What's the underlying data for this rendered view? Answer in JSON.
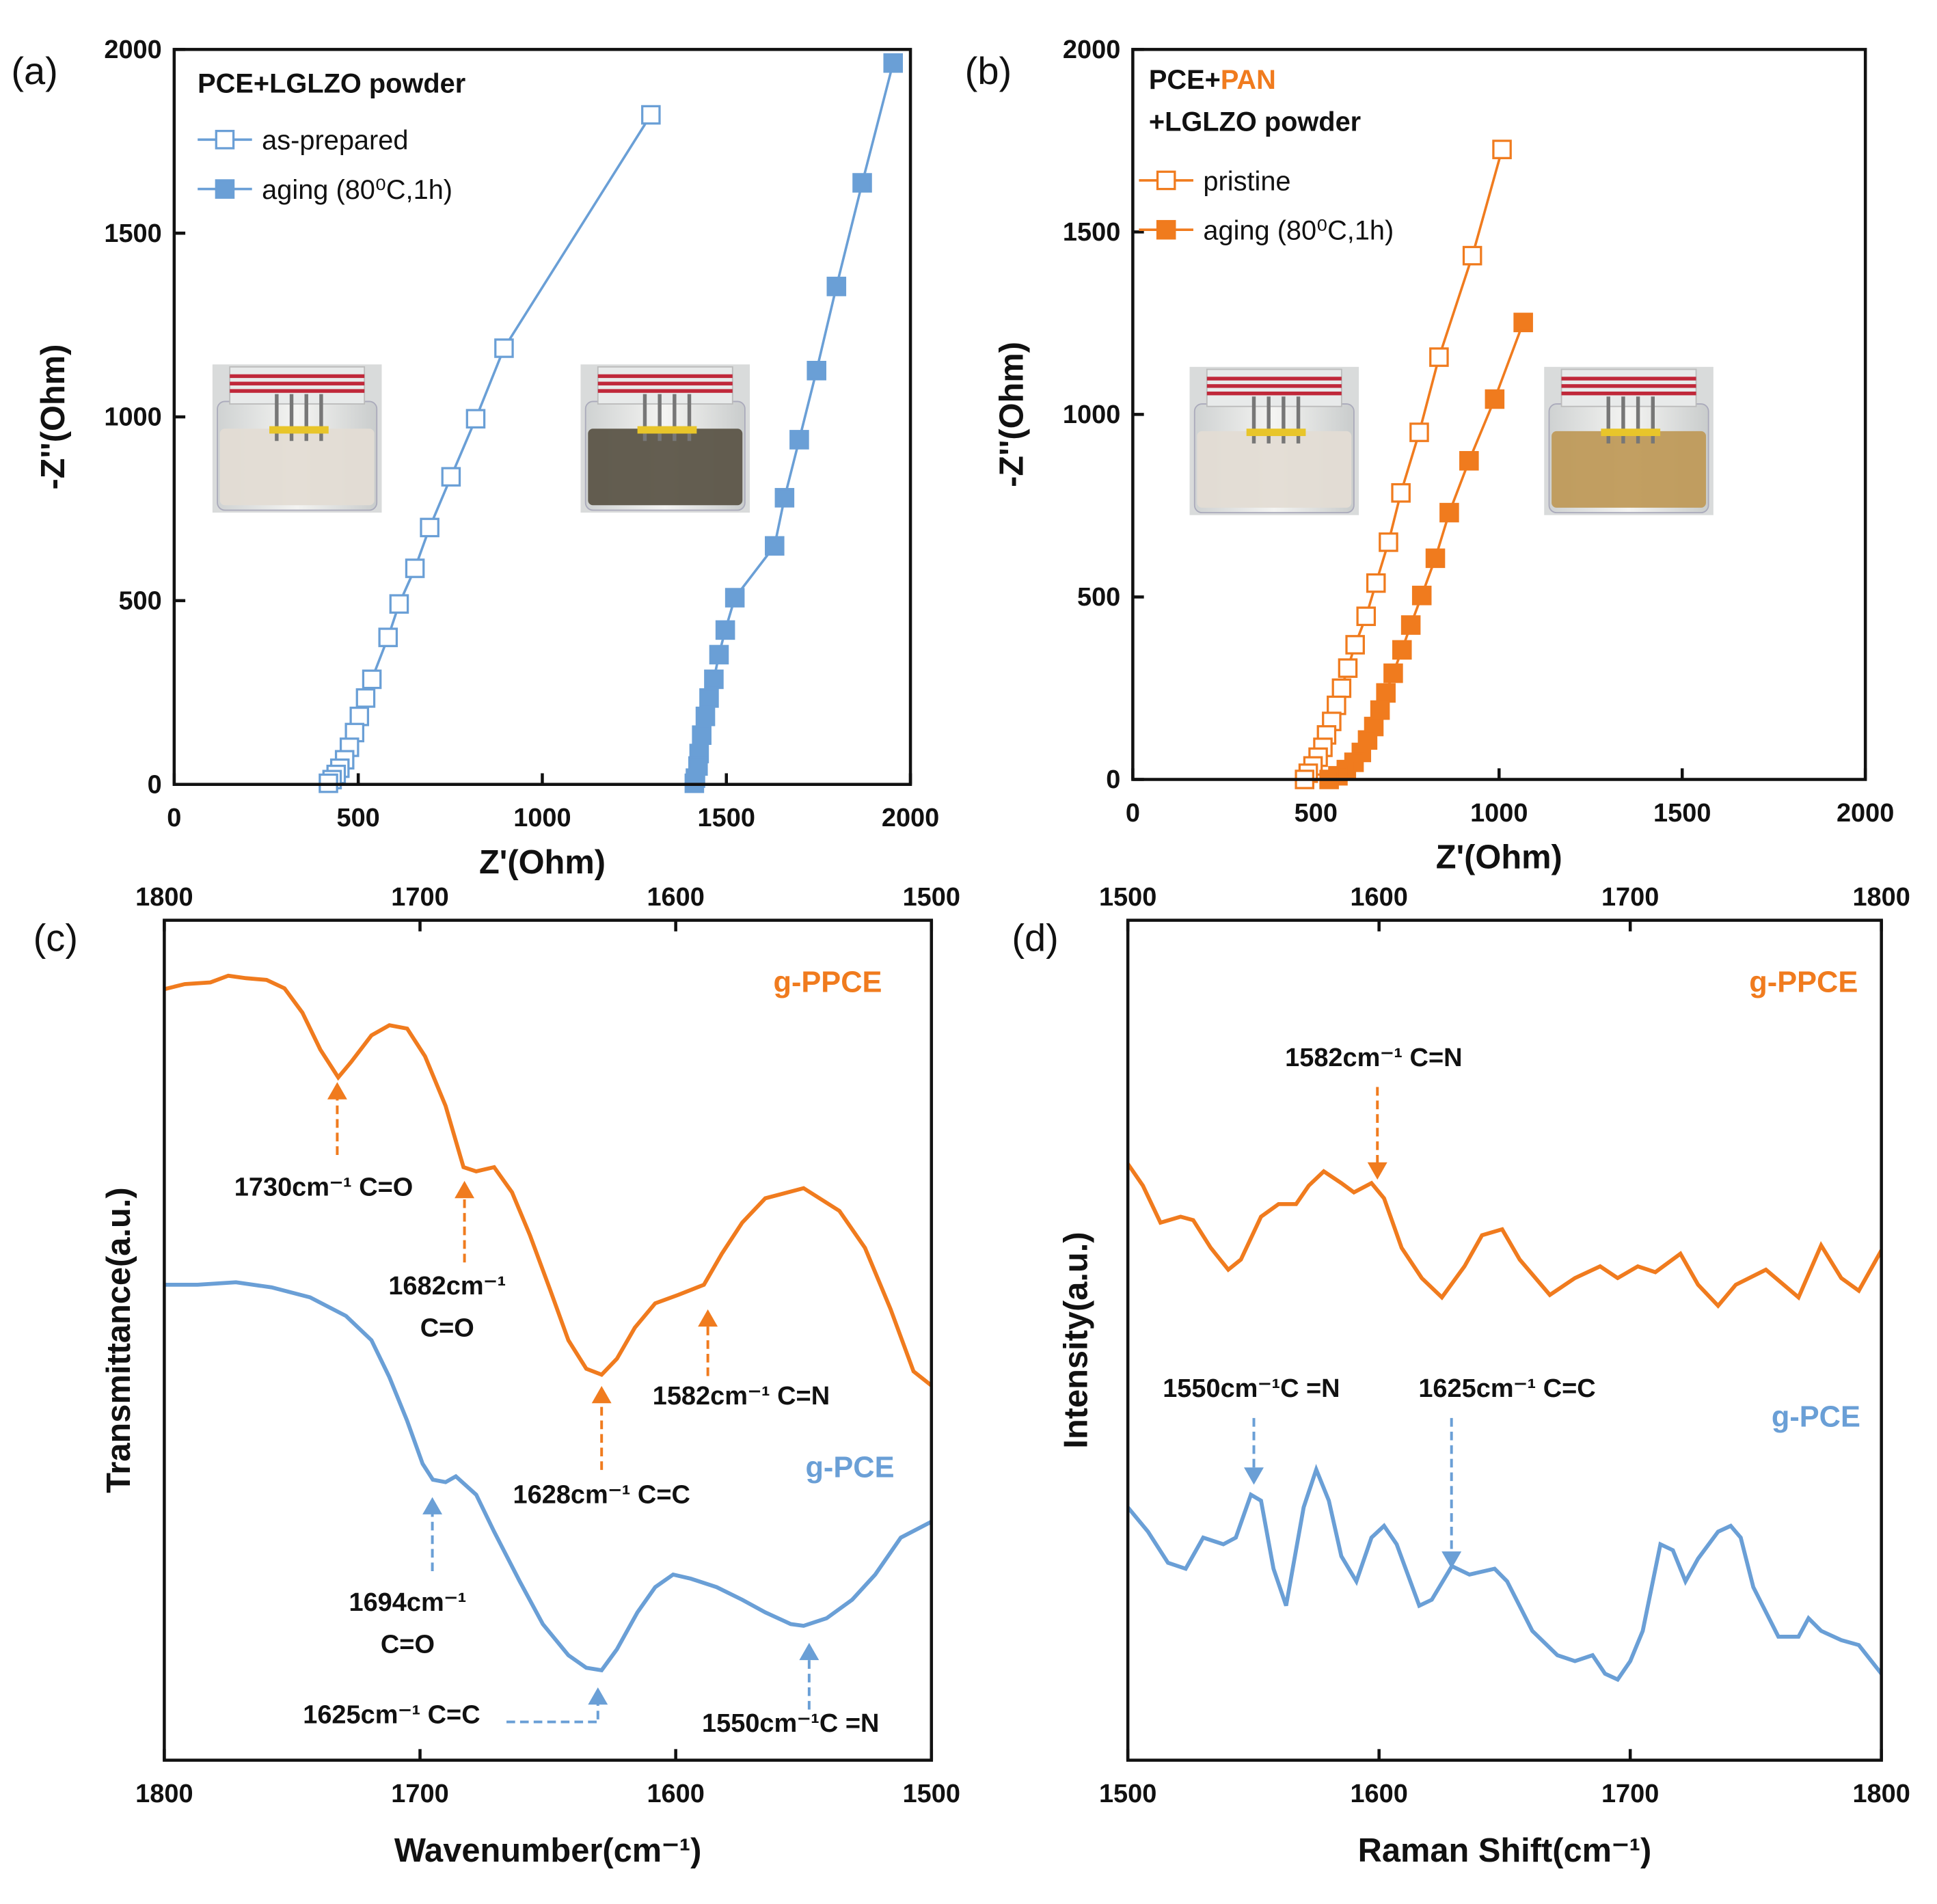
{
  "chart_data": [
    {
      "type": "line",
      "panel": "(a)",
      "title": [
        [
          {
            "text": "PCE+LGLZO powder"
          }
        ]
      ],
      "xlabel": "Z'(Ohm)",
      "ylabel": "-Z''(Ohm)",
      "xlim": [
        0,
        2000
      ],
      "ylim": [
        0,
        2000
      ],
      "xticks": [
        0,
        500,
        1000,
        1500,
        2000
      ],
      "yticks": [
        0,
        500,
        1000,
        1500,
        2000
      ],
      "legend": true,
      "series": [
        {
          "name": "as-prepared",
          "color": "#6a9fd6",
          "marker": "open-square",
          "x": [
            1295,
            896,
            819,
            752,
            694,
            654,
            611,
            581,
            537,
            520,
            503,
            490,
            476,
            463,
            450,
            440,
            429,
            419
          ],
          "values": [
            1822,
            1187,
            995,
            837,
            699,
            588,
            491,
            400,
            286,
            235,
            185,
            141,
            101,
            67,
            44,
            27,
            13,
            3
          ]
        },
        {
          "name": "aging (80⁰C,1h)",
          "color": "#6a9fd6",
          "marker": "filled-square",
          "x": [
            1953,
            1869,
            1799,
            1745,
            1698,
            1658,
            1631,
            1523,
            1497,
            1480,
            1466,
            1453,
            1443,
            1433,
            1426,
            1423,
            1416,
            1413
          ],
          "values": [
            1963,
            1637,
            1355,
            1126,
            938,
            780,
            649,
            508,
            420,
            353,
            286,
            235,
            185,
            134,
            84,
            50,
            17,
            3
          ]
        }
      ]
    },
    {
      "type": "line",
      "panel": "(b)",
      "title": [
        [
          {
            "text": "PCE+"
          },
          {
            "text": "PAN",
            "color": "#f07b1e"
          }
        ],
        [
          {
            "text": "+LGLZO powder"
          }
        ]
      ],
      "xlabel": "Z'(Ohm)",
      "ylabel": "-Z''(Ohm)",
      "xlim": [
        0,
        2000
      ],
      "ylim": [
        0,
        2000
      ],
      "xticks": [
        0,
        500,
        1000,
        1500,
        2000
      ],
      "yticks": [
        0,
        500,
        1000,
        1500,
        2000
      ],
      "legend": true,
      "series": [
        {
          "name": "pristine",
          "color": "#f07b1e",
          "marker": "open-square",
          "x": [
            1008,
            927,
            836,
            782,
            732,
            698,
            664,
            637,
            607,
            587,
            570,
            556,
            543,
            529,
            519,
            506,
            492,
            479,
            469
          ],
          "values": [
            1726,
            1435,
            1157,
            951,
            785,
            650,
            538,
            447,
            369,
            305,
            250,
            203,
            159,
            122,
            88,
            61,
            37,
            17,
            0
          ]
        },
        {
          "name": "aging (80⁰C,1h)",
          "color": "#f07b1e",
          "marker": "filled-square",
          "x": [
            1066,
            988,
            918,
            864,
            826,
            789,
            759,
            735,
            711,
            691,
            675,
            658,
            641,
            624,
            604,
            583,
            560,
            536
          ],
          "values": [
            1252,
            1042,
            873,
            731,
            606,
            504,
            423,
            355,
            291,
            237,
            190,
            145,
            108,
            74,
            47,
            27,
            10,
            0
          ]
        }
      ]
    },
    {
      "type": "line",
      "panel": "(c)",
      "xlabel": "Wavenumber(cm⁻¹)",
      "ylabel": "Transmittance(a.u.)",
      "xlim": [
        1800,
        1500
      ],
      "ylim": [
        0,
        100
      ],
      "xticks": [
        1800,
        1700,
        1600,
        1500
      ],
      "x_axis_top": true,
      "series_labels": true,
      "series": [
        {
          "name": "g-PPCE",
          "color": "#f07b1e",
          "x": [
            1800,
            1792,
            1782,
            1775,
            1768,
            1760,
            1753,
            1746,
            1739,
            1732,
            1727,
            1719,
            1712,
            1705,
            1698,
            1690,
            1683,
            1678,
            1671,
            1664,
            1657,
            1649,
            1642,
            1635,
            1629,
            1623,
            1616,
            1608,
            1599,
            1589,
            1582,
            1574,
            1565,
            1550,
            1536,
            1526,
            1516,
            1507,
            1500
          ],
          "values": [
            91.8,
            92.4,
            92.6,
            93.4,
            93.1,
            92.9,
            91.9,
            89.0,
            84.6,
            81.3,
            83.1,
            86.3,
            87.5,
            87.1,
            83.8,
            77.9,
            70.6,
            70.1,
            70.6,
            67.6,
            62.5,
            55.9,
            50.0,
            46.6,
            45.9,
            47.8,
            51.5,
            54.4,
            55.4,
            56.6,
            60.3,
            64.0,
            66.9,
            68.1,
            65.4,
            61.0,
            53.7,
            46.3,
            44.6
          ]
        },
        {
          "name": "g-PCE",
          "color": "#6a9fd6",
          "x": [
            1800,
            1787,
            1772,
            1758,
            1743,
            1729,
            1719,
            1712,
            1705,
            1699,
            1695,
            1690,
            1686,
            1678,
            1671,
            1661,
            1652,
            1642,
            1635,
            1629,
            1623,
            1615,
            1608,
            1601,
            1594,
            1584,
            1574,
            1565,
            1555,
            1550,
            1541,
            1531,
            1522,
            1512,
            1500
          ],
          "values": [
            56.6,
            56.6,
            56.9,
            56.3,
            55.1,
            52.9,
            50.0,
            45.6,
            40.4,
            35.3,
            33.4,
            33.1,
            33.8,
            31.6,
            27.2,
            21.3,
            16.2,
            12.5,
            11.0,
            10.7,
            13.2,
            17.6,
            20.6,
            22.1,
            21.6,
            20.6,
            19.1,
            17.6,
            16.2,
            16.0,
            16.9,
            19.1,
            22.1,
            26.5,
            28.4
          ]
        }
      ],
      "annotations": [
        {
          "lines": [
            "1730cm⁻¹ C=O"
          ],
          "color": "#f07b1e"
        },
        {
          "lines": [
            "1682cm⁻¹",
            "C=O"
          ],
          "color": "#f07b1e"
        },
        {
          "lines": [
            "1582cm⁻¹ C=N"
          ],
          "color": "#f07b1e"
        },
        {
          "lines": [
            "1628cm⁻¹ C=C"
          ],
          "color": "#f07b1e"
        },
        {
          "lines": [
            "1694cm⁻¹",
            "C=O"
          ],
          "color": "#6a9fd6"
        },
        {
          "lines": [
            "1625cm⁻¹ C=C"
          ],
          "color": "#6a9fd6"
        },
        {
          "lines": [
            "1550cm⁻¹C =N"
          ],
          "color": "#6a9fd6"
        }
      ]
    },
    {
      "type": "line",
      "panel": "(d)",
      "xlabel": "Raman Shift(cm⁻¹)",
      "ylabel": "Intensity(a.u.)",
      "xlim": [
        1500,
        1800
      ],
      "ylim": [
        0,
        100
      ],
      "xticks": [
        1500,
        1600,
        1700,
        1800
      ],
      "x_axis_top": true,
      "series_labels": true,
      "series": [
        {
          "name": "g-PPCE",
          "color": "#f07b1e",
          "x": [
            1500,
            1506,
            1513,
            1521,
            1526,
            1533,
            1540,
            1545,
            1553,
            1560,
            1567,
            1572,
            1578,
            1585,
            1590,
            1597,
            1602,
            1609,
            1617,
            1625,
            1634,
            1641,
            1649,
            1656,
            1668,
            1678,
            1688,
            1695,
            1703,
            1710,
            1720,
            1727,
            1735,
            1742,
            1754,
            1767,
            1776,
            1784,
            1791,
            1800
          ],
          "values": [
            71.0,
            68.4,
            64.0,
            64.7,
            64.3,
            61.0,
            58.4,
            59.6,
            64.7,
            66.2,
            66.2,
            68.4,
            70.1,
            68.7,
            67.6,
            68.7,
            66.9,
            61.0,
            57.4,
            55.1,
            58.8,
            62.5,
            63.2,
            59.6,
            55.4,
            57.4,
            58.8,
            57.4,
            58.8,
            58.1,
            60.3,
            56.6,
            54.1,
            56.6,
            58.4,
            55.1,
            61.3,
            57.4,
            55.9,
            60.7
          ]
        },
        {
          "name": "g-PCE",
          "color": "#6a9fd6",
          "x": [
            1500,
            1508,
            1516,
            1523,
            1530,
            1538,
            1543,
            1549,
            1553,
            1558,
            1563,
            1570,
            1575,
            1580,
            1585,
            1591,
            1597,
            1602,
            1607,
            1616,
            1621,
            1629,
            1636,
            1646,
            1651,
            1661,
            1671,
            1678,
            1685,
            1690,
            1695,
            1700,
            1705,
            1712,
            1717,
            1722,
            1727,
            1735,
            1740,
            1744,
            1749,
            1759,
            1767,
            1771,
            1776,
            1784,
            1791,
            1800
          ],
          "values": [
            30.1,
            27.2,
            23.5,
            22.8,
            26.5,
            25.7,
            26.5,
            31.6,
            30.9,
            22.8,
            18.4,
            30.1,
            34.6,
            30.9,
            24.3,
            21.3,
            26.5,
            27.9,
            25.7,
            18.4,
            19.1,
            23.1,
            22.1,
            22.8,
            21.3,
            15.4,
            12.5,
            11.8,
            12.5,
            10.3,
            9.6,
            11.8,
            15.4,
            25.7,
            25.0,
            21.3,
            24.0,
            27.2,
            27.9,
            26.5,
            20.6,
            14.7,
            14.7,
            16.9,
            15.4,
            14.3,
            13.7,
            10.3
          ]
        }
      ],
      "annotations": [
        {
          "lines": [
            "1582cm⁻¹ C=N"
          ],
          "color": "#f07b1e"
        },
        {
          "lines": [
            "1550cm⁻¹C =N"
          ],
          "color": "#6a9fd6"
        },
        {
          "lines": [
            "1625cm⁻¹ C=C"
          ],
          "color": "#6a9fd6"
        }
      ]
    }
  ]
}
